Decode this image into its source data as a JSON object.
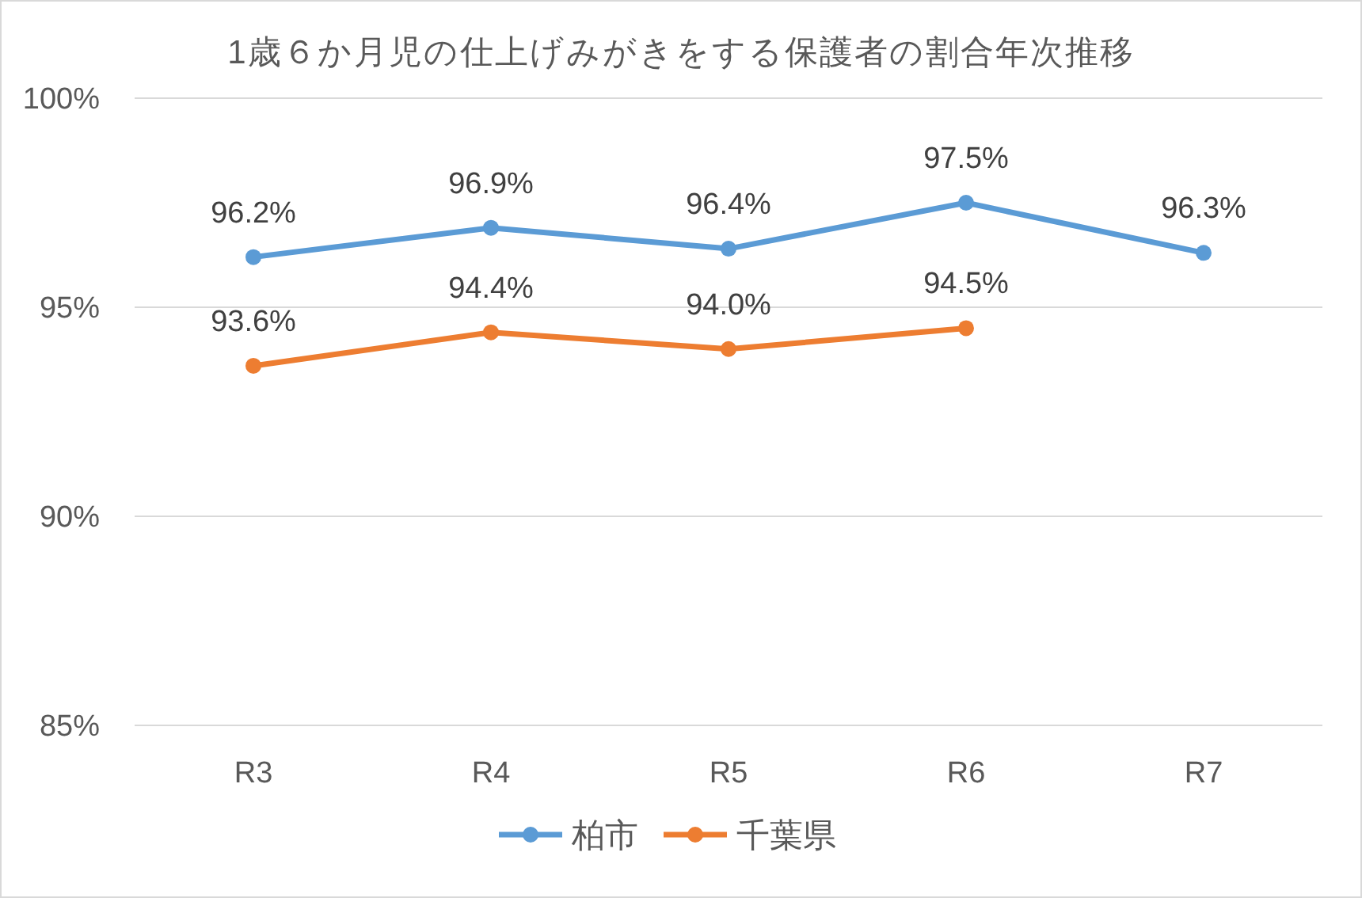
{
  "chart_data": {
    "type": "line",
    "title": "1歳６か月児の仕上げみがきをする保護者の割合年次推移",
    "categories": [
      "R3",
      "R4",
      "R5",
      "R6",
      "R7"
    ],
    "series": [
      {
        "name": "柏市",
        "color": "#5b9bd5",
        "values": [
          96.2,
          96.9,
          96.4,
          97.5,
          96.3
        ],
        "value_labels": [
          "96.2%",
          "96.9%",
          "96.4%",
          "97.5%",
          "96.3%"
        ]
      },
      {
        "name": "千葉県",
        "color": "#ed7d31",
        "values": [
          93.6,
          94.4,
          94.0,
          94.5,
          null
        ],
        "value_labels": [
          "93.6%",
          "94.4%",
          "94.0%",
          "94.5%",
          null
        ]
      }
    ],
    "ylim": [
      85,
      100
    ],
    "yticks": [
      {
        "value": 85,
        "label": "85%"
      },
      {
        "value": 90,
        "label": "90%"
      },
      {
        "value": 95,
        "label": "95%"
      },
      {
        "value": 100,
        "label": "100%"
      }
    ],
    "grid": "y",
    "legend": "bottom",
    "marker": "circle",
    "line_style": "solid"
  }
}
